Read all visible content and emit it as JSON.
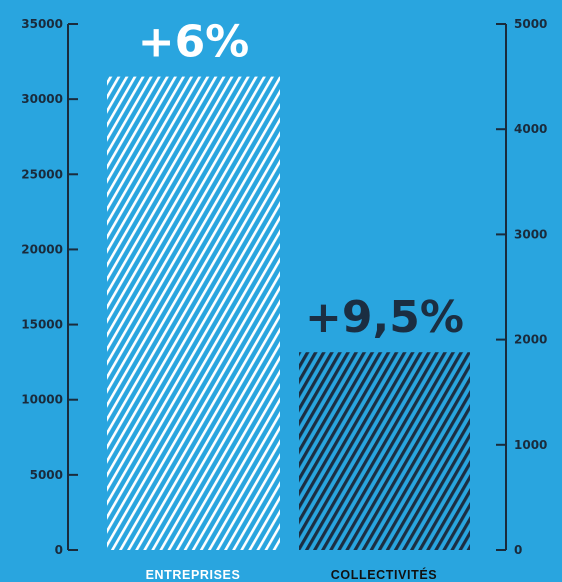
{
  "chart_data": {
    "type": "bar",
    "categories": [
      "ENTREPRISES",
      "COLLECTIVITÉS"
    ],
    "left_axis": {
      "ylim": [
        0,
        35000
      ],
      "ticks": [
        0,
        5000,
        10000,
        15000,
        20000,
        25000,
        30000,
        35000
      ]
    },
    "right_axis": {
      "ylim": [
        0,
        5000
      ],
      "ticks": [
        0,
        1000,
        2000,
        3000,
        4000,
        5000
      ]
    },
    "bars": [
      {
        "category": "ENTREPRISES",
        "value": 31500,
        "axis": "left",
        "label": "+6%",
        "pattern": "white-diagonal-hatch",
        "label_color": "#ffffff"
      },
      {
        "category": "COLLECTIVITÉS",
        "value": 1880,
        "axis": "right",
        "label": "+9,5%",
        "pattern": "navy-diagonal-hatch",
        "label_color": "#1b2e42"
      }
    ],
    "colors": {
      "background": "#29a5df",
      "axis": "#1a2b3c",
      "hatch_light": "#ffffff",
      "hatch_dark": "#1b2e42",
      "category_entreprises": "#ffffff",
      "category_collectivites": "#111111"
    },
    "grid": false,
    "title": "",
    "xlabel": "",
    "ylabel": ""
  }
}
